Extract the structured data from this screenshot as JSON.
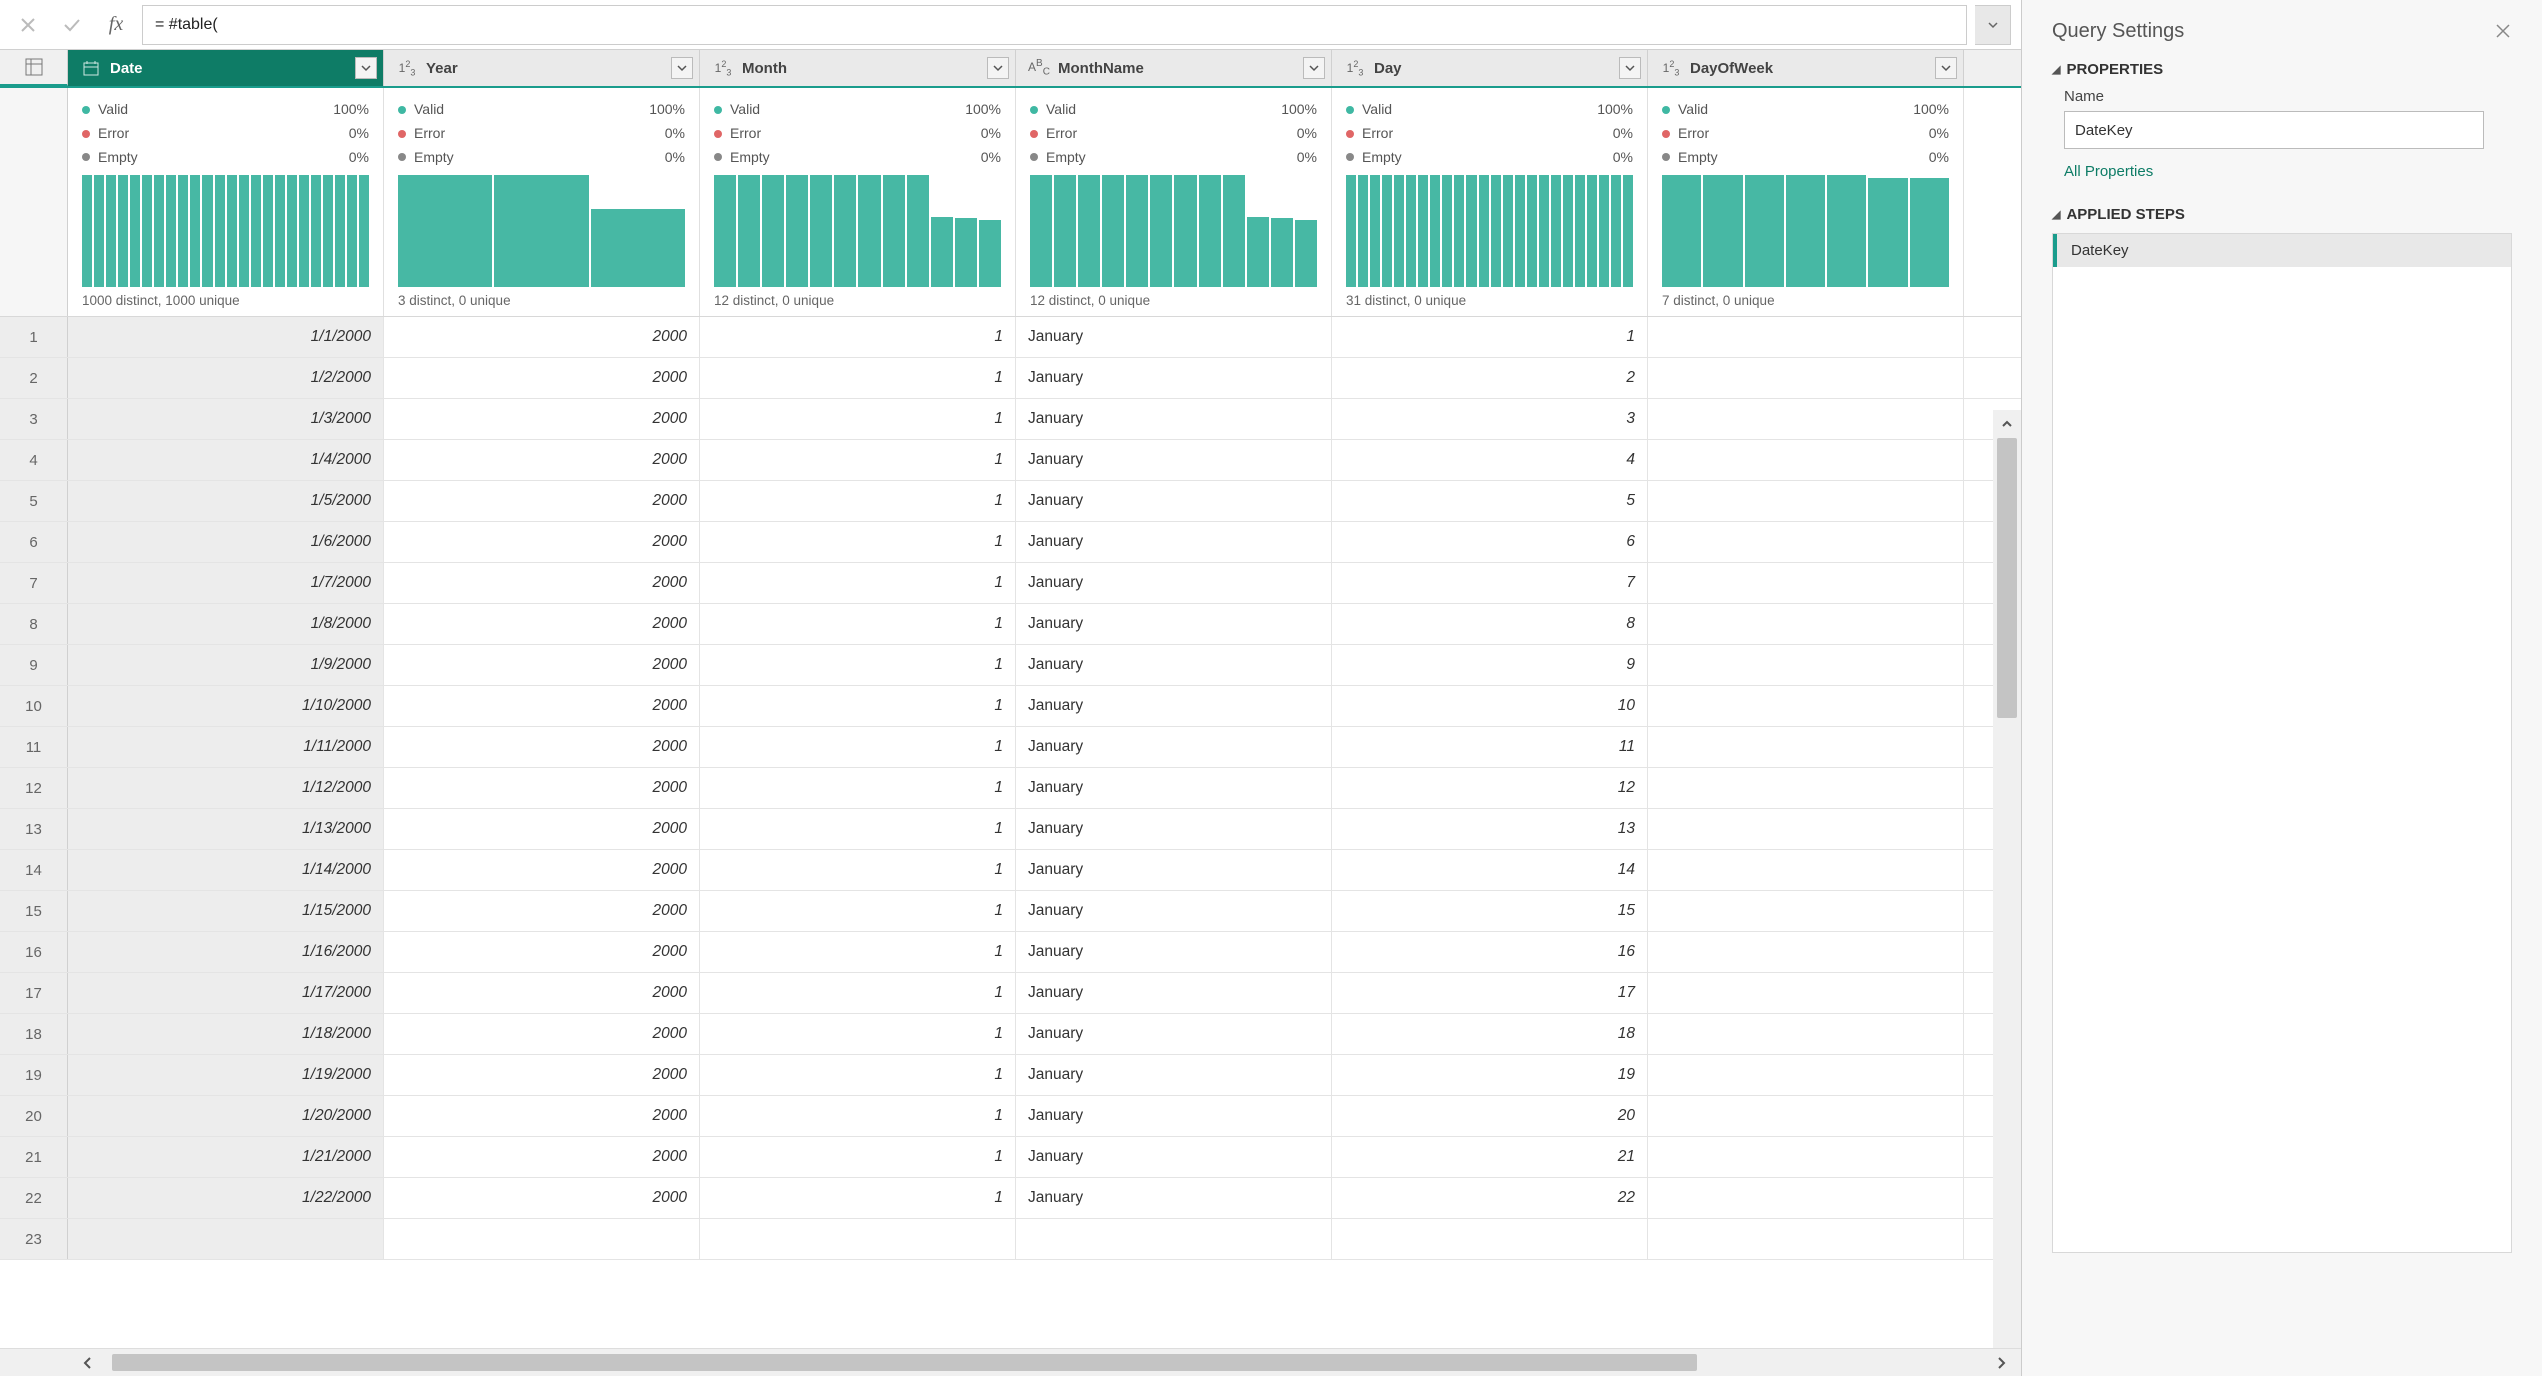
{
  "formula_bar": {
    "value": "= #table("
  },
  "columns": [
    {
      "name": "Date",
      "type": "date",
      "selected": true,
      "valid": "100%",
      "error": "0%",
      "empty": "0%",
      "distinct": "1000 distinct, 1000 unique",
      "spark": [
        100,
        100,
        100,
        100,
        100,
        100,
        100,
        100,
        100,
        100,
        100,
        100,
        100,
        100,
        100,
        100,
        100,
        100,
        100,
        100,
        100,
        100,
        100,
        100
      ]
    },
    {
      "name": "Year",
      "type": "num",
      "selected": false,
      "valid": "100%",
      "error": "0%",
      "empty": "0%",
      "distinct": "3 distinct, 0 unique",
      "spark": [
        100,
        100,
        70
      ]
    },
    {
      "name": "Month",
      "type": "num",
      "selected": false,
      "valid": "100%",
      "error": "0%",
      "empty": "0%",
      "distinct": "12 distinct, 0 unique",
      "spark": [
        100,
        100,
        100,
        100,
        100,
        100,
        100,
        100,
        100,
        63,
        62,
        60
      ]
    },
    {
      "name": "MonthName",
      "type": "text",
      "selected": false,
      "valid": "100%",
      "error": "0%",
      "empty": "0%",
      "distinct": "12 distinct, 0 unique",
      "spark": [
        100,
        100,
        100,
        100,
        100,
        100,
        100,
        100,
        100,
        63,
        62,
        60
      ]
    },
    {
      "name": "Day",
      "type": "num",
      "selected": false,
      "valid": "100%",
      "error": "0%",
      "empty": "0%",
      "distinct": "31 distinct, 0 unique",
      "spark": [
        100,
        100,
        100,
        100,
        100,
        100,
        100,
        100,
        100,
        100,
        100,
        100,
        100,
        100,
        100,
        100,
        100,
        100,
        100,
        100,
        100,
        100,
        100,
        100
      ]
    },
    {
      "name": "DayOfWeek",
      "type": "num",
      "selected": false,
      "valid": "100%",
      "error": "0%",
      "empty": "0%",
      "distinct": "7 distinct, 0 unique",
      "spark": [
        100,
        100,
        100,
        100,
        100,
        98,
        98
      ]
    }
  ],
  "quality_labels": {
    "valid": "Valid",
    "error": "Error",
    "empty": "Empty"
  },
  "rows": [
    {
      "n": 1,
      "date": "1/1/2000",
      "year": "2000",
      "month": "1",
      "monthname": "January",
      "day": "1"
    },
    {
      "n": 2,
      "date": "1/2/2000",
      "year": "2000",
      "month": "1",
      "monthname": "January",
      "day": "2"
    },
    {
      "n": 3,
      "date": "1/3/2000",
      "year": "2000",
      "month": "1",
      "monthname": "January",
      "day": "3"
    },
    {
      "n": 4,
      "date": "1/4/2000",
      "year": "2000",
      "month": "1",
      "monthname": "January",
      "day": "4"
    },
    {
      "n": 5,
      "date": "1/5/2000",
      "year": "2000",
      "month": "1",
      "monthname": "January",
      "day": "5"
    },
    {
      "n": 6,
      "date": "1/6/2000",
      "year": "2000",
      "month": "1",
      "monthname": "January",
      "day": "6"
    },
    {
      "n": 7,
      "date": "1/7/2000",
      "year": "2000",
      "month": "1",
      "monthname": "January",
      "day": "7"
    },
    {
      "n": 8,
      "date": "1/8/2000",
      "year": "2000",
      "month": "1",
      "monthname": "January",
      "day": "8"
    },
    {
      "n": 9,
      "date": "1/9/2000",
      "year": "2000",
      "month": "1",
      "monthname": "January",
      "day": "9"
    },
    {
      "n": 10,
      "date": "1/10/2000",
      "year": "2000",
      "month": "1",
      "monthname": "January",
      "day": "10"
    },
    {
      "n": 11,
      "date": "1/11/2000",
      "year": "2000",
      "month": "1",
      "monthname": "January",
      "day": "11"
    },
    {
      "n": 12,
      "date": "1/12/2000",
      "year": "2000",
      "month": "1",
      "monthname": "January",
      "day": "12"
    },
    {
      "n": 13,
      "date": "1/13/2000",
      "year": "2000",
      "month": "1",
      "monthname": "January",
      "day": "13"
    },
    {
      "n": 14,
      "date": "1/14/2000",
      "year": "2000",
      "month": "1",
      "monthname": "January",
      "day": "14"
    },
    {
      "n": 15,
      "date": "1/15/2000",
      "year": "2000",
      "month": "1",
      "monthname": "January",
      "day": "15"
    },
    {
      "n": 16,
      "date": "1/16/2000",
      "year": "2000",
      "month": "1",
      "monthname": "January",
      "day": "16"
    },
    {
      "n": 17,
      "date": "1/17/2000",
      "year": "2000",
      "month": "1",
      "monthname": "January",
      "day": "17"
    },
    {
      "n": 18,
      "date": "1/18/2000",
      "year": "2000",
      "month": "1",
      "monthname": "January",
      "day": "18"
    },
    {
      "n": 19,
      "date": "1/19/2000",
      "year": "2000",
      "month": "1",
      "monthname": "January",
      "day": "19"
    },
    {
      "n": 20,
      "date": "1/20/2000",
      "year": "2000",
      "month": "1",
      "monthname": "January",
      "day": "20"
    },
    {
      "n": 21,
      "date": "1/21/2000",
      "year": "2000",
      "month": "1",
      "monthname": "January",
      "day": "21"
    },
    {
      "n": 22,
      "date": "1/22/2000",
      "year": "2000",
      "month": "1",
      "monthname": "January",
      "day": "22"
    },
    {
      "n": 23,
      "date": "",
      "year": "",
      "month": "",
      "monthname": "",
      "day": ""
    }
  ],
  "sidebar": {
    "title": "Query Settings",
    "properties_label": "PROPERTIES",
    "name_label": "Name",
    "name_value": "DateKey",
    "all_properties": "All Properties",
    "applied_steps_label": "APPLIED STEPS",
    "steps": [
      "DateKey"
    ]
  },
  "colors": {
    "accent": "#1a9c8c",
    "spark": "#47b8a4",
    "valid_dot": "#3fb8a3",
    "error_dot": "#e06666",
    "empty_dot": "#888888"
  }
}
